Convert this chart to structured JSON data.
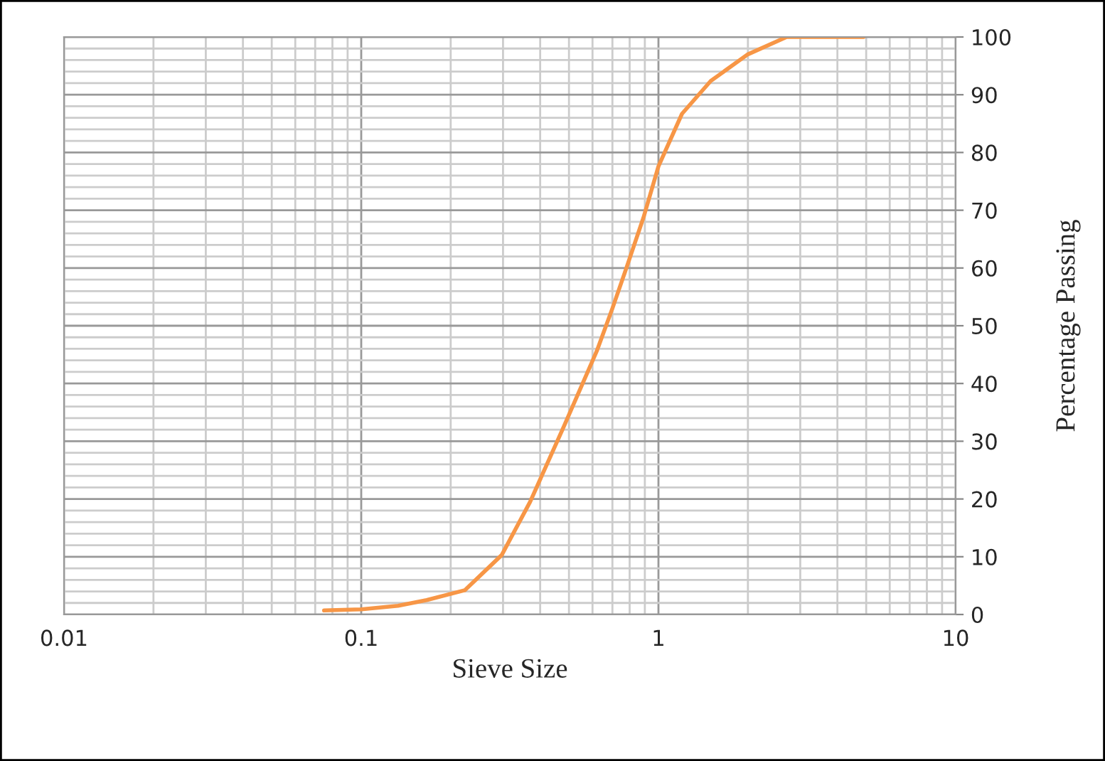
{
  "chart_data": {
    "type": "line",
    "xlabel": "Sieve Size",
    "ylabel": "Percentage Passing",
    "log": "x",
    "grid": true,
    "marker": "none",
    "line_style": "solid",
    "legend": false,
    "xlim": [
      0.01,
      10
    ],
    "xticks": [
      0.01,
      0.1,
      1,
      10
    ],
    "ylim": [
      0,
      100
    ],
    "yticks": [
      0,
      10,
      20,
      30,
      40,
      50,
      60,
      70,
      80,
      90,
      100
    ],
    "series": [
      {
        "color": "#f79646",
        "x": [
          0.075,
          0.1,
          0.133,
          0.166,
          0.223,
          0.297,
          0.37,
          0.48,
          0.62,
          0.7,
          0.78,
          0.89,
          1.0,
          1.2,
          1.5,
          2.0,
          2.7,
          4.9
        ],
        "values": [
          0.7,
          0.9,
          1.5,
          2.5,
          4.2,
          10.3,
          19.5,
          32.5,
          45.6,
          53,
          60,
          68.7,
          77.6,
          86.7,
          92.4,
          97,
          100,
          100
        ]
      }
    ]
  }
}
